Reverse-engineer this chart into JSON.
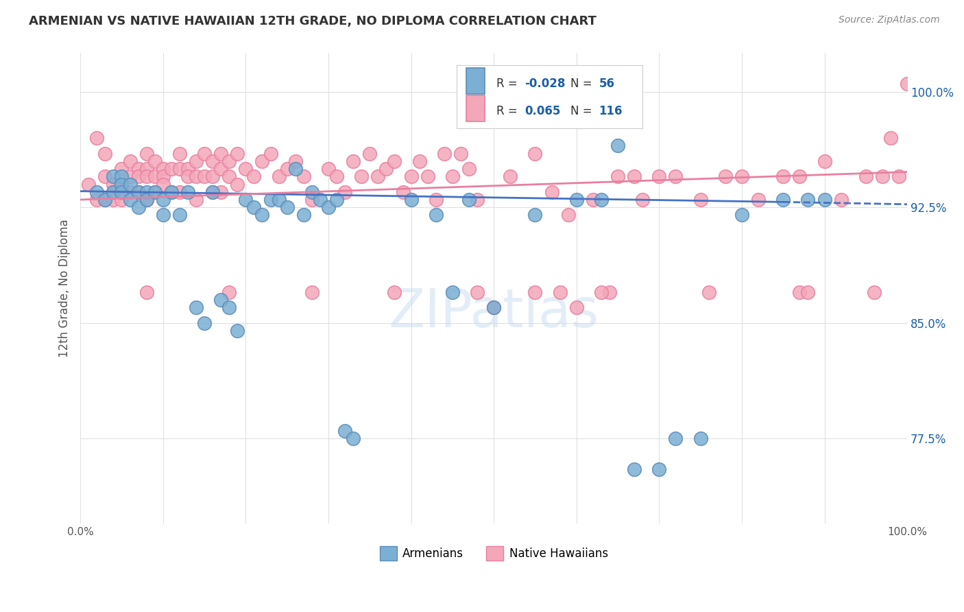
{
  "title": "ARMENIAN VS NATIVE HAWAIIAN 12TH GRADE, NO DIPLOMA CORRELATION CHART",
  "source": "Source: ZipAtlas.com",
  "ylabel": "12th Grade, No Diploma",
  "watermark": "ZIPatlas",
  "armenian_R": -0.028,
  "armenian_N": 56,
  "hawaiian_R": 0.065,
  "hawaiian_N": 116,
  "xlim": [
    0.0,
    1.0
  ],
  "ylim": [
    0.72,
    1.025
  ],
  "yticks": [
    0.775,
    0.85,
    0.925,
    1.0
  ],
  "ytick_labels": [
    "77.5%",
    "85.0%",
    "92.5%",
    "100.0%"
  ],
  "xtick_labels": [
    "0.0%",
    "",
    "",
    "",
    "",
    "",
    "",
    "",
    "",
    "",
    "100.0%"
  ],
  "armenian_color": "#7bafd4",
  "hawaiian_color": "#f4a7b9",
  "armenian_edge": "#5b8db8",
  "hawaiian_edge": "#e87fa0",
  "line_armenian": "#4472c4",
  "line_hawaiian": "#e87fa0",
  "background": "#ffffff",
  "grid_color": "#e0e0e0",
  "title_color": "#333333",
  "label_color": "#555555",
  "legend_color": "#1a5fa8",
  "armenian_x": [
    0.02,
    0.03,
    0.04,
    0.04,
    0.05,
    0.05,
    0.05,
    0.06,
    0.06,
    0.07,
    0.07,
    0.08,
    0.08,
    0.09,
    0.1,
    0.1,
    0.11,
    0.12,
    0.13,
    0.14,
    0.15,
    0.16,
    0.17,
    0.18,
    0.19,
    0.2,
    0.21,
    0.22,
    0.23,
    0.24,
    0.25,
    0.26,
    0.27,
    0.28,
    0.29,
    0.3,
    0.31,
    0.32,
    0.33,
    0.4,
    0.43,
    0.45,
    0.47,
    0.5,
    0.55,
    0.6,
    0.63,
    0.65,
    0.67,
    0.7,
    0.72,
    0.75,
    0.8,
    0.85,
    0.88,
    0.9
  ],
  "armenian_y": [
    0.935,
    0.93,
    0.945,
    0.935,
    0.945,
    0.94,
    0.935,
    0.94,
    0.93,
    0.935,
    0.925,
    0.935,
    0.93,
    0.935,
    0.93,
    0.92,
    0.935,
    0.92,
    0.935,
    0.86,
    0.85,
    0.935,
    0.865,
    0.86,
    0.845,
    0.93,
    0.925,
    0.92,
    0.93,
    0.93,
    0.925,
    0.95,
    0.92,
    0.935,
    0.93,
    0.925,
    0.93,
    0.78,
    0.775,
    0.93,
    0.92,
    0.87,
    0.93,
    0.86,
    0.92,
    0.93,
    0.93,
    0.965,
    0.755,
    0.755,
    0.775,
    0.775,
    0.92,
    0.93,
    0.93,
    0.93
  ],
  "hawaiian_x": [
    0.01,
    0.02,
    0.02,
    0.03,
    0.03,
    0.03,
    0.04,
    0.04,
    0.04,
    0.05,
    0.05,
    0.05,
    0.06,
    0.06,
    0.06,
    0.07,
    0.07,
    0.07,
    0.08,
    0.08,
    0.08,
    0.08,
    0.09,
    0.09,
    0.09,
    0.1,
    0.1,
    0.1,
    0.11,
    0.11,
    0.12,
    0.12,
    0.12,
    0.13,
    0.13,
    0.14,
    0.14,
    0.14,
    0.15,
    0.15,
    0.16,
    0.16,
    0.16,
    0.17,
    0.17,
    0.17,
    0.18,
    0.18,
    0.19,
    0.19,
    0.2,
    0.21,
    0.22,
    0.23,
    0.24,
    0.25,
    0.26,
    0.27,
    0.28,
    0.3,
    0.31,
    0.32,
    0.33,
    0.34,
    0.35,
    0.36,
    0.37,
    0.38,
    0.39,
    0.4,
    0.41,
    0.42,
    0.43,
    0.44,
    0.45,
    0.46,
    0.47,
    0.48,
    0.5,
    0.52,
    0.55,
    0.57,
    0.59,
    0.6,
    0.62,
    0.65,
    0.67,
    0.68,
    0.7,
    0.72,
    0.75,
    0.78,
    0.8,
    0.82,
    0.85,
    0.87,
    0.9,
    0.92,
    0.95,
    0.97,
    0.98,
    0.99,
    1.0,
    0.96,
    0.87,
    0.64,
    0.58,
    0.48,
    0.38,
    0.28,
    0.18,
    0.08,
    0.63,
    0.76,
    0.88,
    0.55
  ],
  "hawaiian_y": [
    0.94,
    0.93,
    0.97,
    0.93,
    0.945,
    0.96,
    0.94,
    0.935,
    0.93,
    0.95,
    0.94,
    0.93,
    0.955,
    0.945,
    0.935,
    0.95,
    0.945,
    0.935,
    0.96,
    0.95,
    0.945,
    0.93,
    0.955,
    0.945,
    0.935,
    0.95,
    0.945,
    0.94,
    0.95,
    0.935,
    0.96,
    0.95,
    0.935,
    0.95,
    0.945,
    0.955,
    0.945,
    0.93,
    0.96,
    0.945,
    0.955,
    0.945,
    0.935,
    0.96,
    0.95,
    0.935,
    0.955,
    0.945,
    0.96,
    0.94,
    0.95,
    0.945,
    0.955,
    0.96,
    0.945,
    0.95,
    0.955,
    0.945,
    0.93,
    0.95,
    0.945,
    0.935,
    0.955,
    0.945,
    0.96,
    0.945,
    0.95,
    0.955,
    0.935,
    0.945,
    0.955,
    0.945,
    0.93,
    0.96,
    0.945,
    0.96,
    0.95,
    0.93,
    0.86,
    0.945,
    0.96,
    0.935,
    0.92,
    0.86,
    0.93,
    0.945,
    0.945,
    0.93,
    0.945,
    0.945,
    0.93,
    0.945,
    0.945,
    0.93,
    0.945,
    0.945,
    0.955,
    0.93,
    0.945,
    0.945,
    0.97,
    0.945,
    1.005,
    0.87,
    0.87,
    0.87,
    0.87,
    0.87,
    0.87,
    0.87,
    0.87,
    0.87,
    0.87,
    0.87,
    0.87,
    0.87
  ]
}
